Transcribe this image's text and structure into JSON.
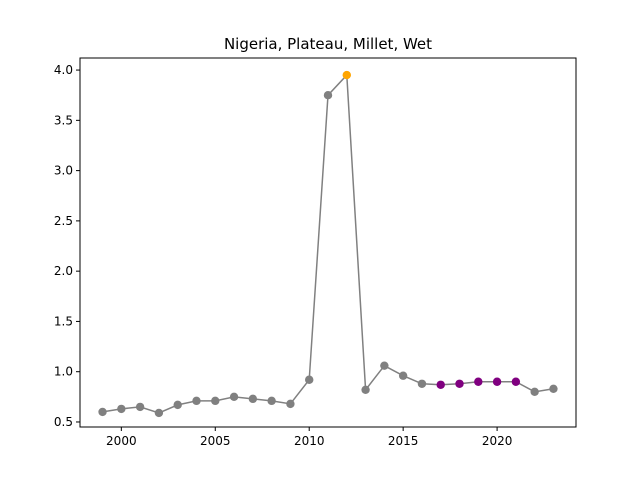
{
  "chart_data": {
    "type": "line",
    "title": "Nigeria, Plateau, Millet, Wet",
    "xlabel": "",
    "ylabel": "",
    "xlim": [
      1997.8,
      2024.2
    ],
    "ylim": [
      0.45,
      4.12
    ],
    "xticks": [
      2000,
      2005,
      2010,
      2015,
      2020
    ],
    "xtick_labels": [
      "2000",
      "2005",
      "2010",
      "2015",
      "2020"
    ],
    "yticks": [
      0.5,
      1.0,
      1.5,
      2.0,
      2.5,
      3.0,
      3.5,
      4.0
    ],
    "ytick_labels": [
      "0.5",
      "1.0",
      "1.5",
      "2.0",
      "2.5",
      "3.0",
      "3.5",
      "4.0"
    ],
    "grid": false,
    "line_color": "#808080",
    "series": [
      {
        "x": [
          1999,
          2000,
          2001,
          2002,
          2003,
          2004,
          2005,
          2006,
          2007,
          2008,
          2009,
          2010,
          2011,
          2012,
          2013,
          2014,
          2015,
          2016,
          2017,
          2018,
          2019,
          2020,
          2021,
          2022,
          2023
        ],
        "values": [
          0.6,
          0.63,
          0.65,
          0.59,
          0.67,
          0.71,
          0.71,
          0.75,
          0.73,
          0.71,
          0.68,
          0.92,
          3.75,
          3.95,
          0.82,
          1.06,
          0.96,
          0.88,
          0.87,
          0.88,
          0.9,
          0.9,
          0.9,
          0.8,
          0.83
        ],
        "point_colors": [
          "#808080",
          "#808080",
          "#808080",
          "#808080",
          "#808080",
          "#808080",
          "#808080",
          "#808080",
          "#808080",
          "#808080",
          "#808080",
          "#808080",
          "#808080",
          "#ffa500",
          "#808080",
          "#808080",
          "#808080",
          "#808080",
          "#800080",
          "#800080",
          "#800080",
          "#800080",
          "#800080",
          "#808080",
          "#808080"
        ]
      }
    ]
  }
}
